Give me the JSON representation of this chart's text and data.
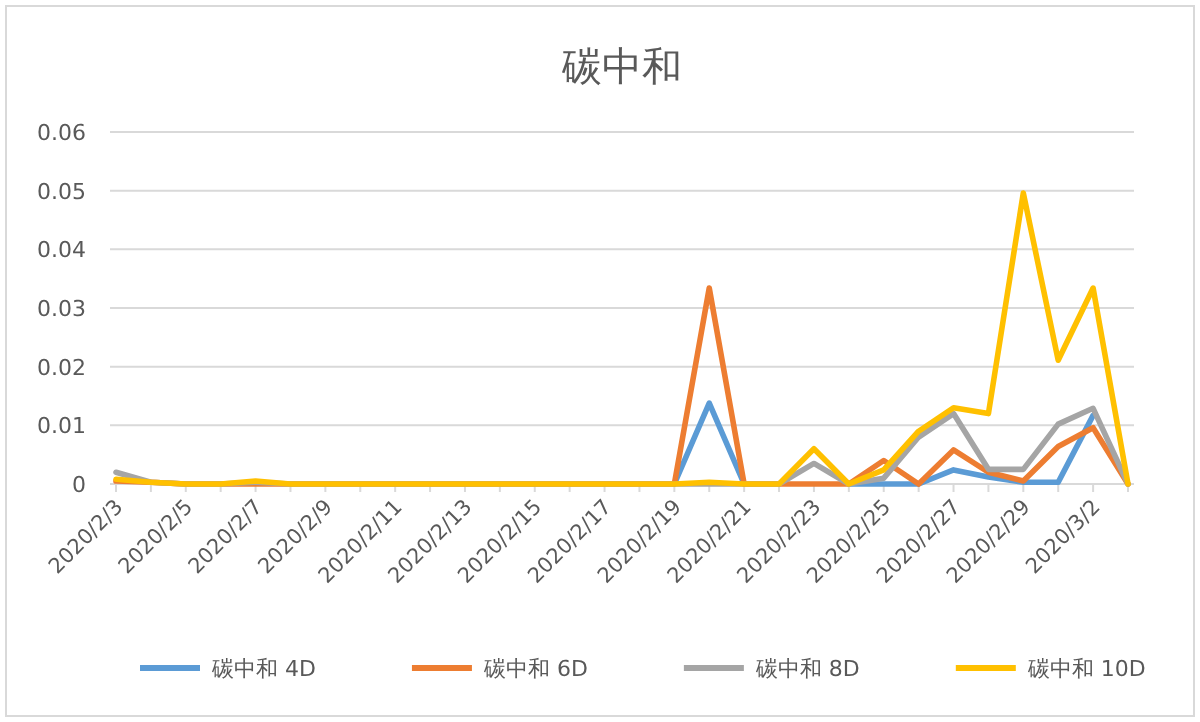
{
  "chart_data": {
    "type": "line",
    "title": "碳中和",
    "categories": [
      "2020/2/3",
      null,
      "2020/2/5",
      null,
      "2020/2/7",
      null,
      "2020/2/9",
      null,
      "2020/2/11",
      null,
      "2020/2/13",
      null,
      "2020/2/15",
      null,
      "2020/2/17",
      null,
      "2020/2/19",
      null,
      "2020/2/21",
      null,
      "2020/2/23",
      null,
      "2020/2/25",
      null,
      "2020/2/27",
      null,
      "2020/2/29",
      null,
      "2020/3/2",
      null
    ],
    "series": [
      {
        "name": "碳中和 4D",
        "color": "#5b9bd5",
        "values": [
          null,
          null,
          null,
          null,
          null,
          null,
          null,
          null,
          null,
          null,
          null,
          null,
          null,
          null,
          null,
          null,
          0,
          0.0138,
          0,
          null,
          null,
          0,
          0,
          0,
          0.0024,
          0.0012,
          0.0003,
          0.0003,
          0.0117,
          null
        ]
      },
      {
        "name": "碳中和 6D",
        "color": "#ed7d31",
        "values": [
          0.0005,
          0.0003,
          0,
          0,
          0,
          0,
          0,
          0,
          0,
          0,
          0,
          0,
          0,
          0,
          0,
          0,
          0,
          0.0334,
          0,
          0,
          0,
          0,
          0.004,
          0,
          0.0058,
          0.002,
          0.0005,
          0.0064,
          0.0096,
          0
        ]
      },
      {
        "name": "碳中和 8D",
        "color": "#a5a5a5",
        "values": [
          0.002,
          0.0003,
          0,
          0,
          0.0003,
          0,
          0,
          0,
          0,
          0,
          0,
          0,
          0,
          0,
          0,
          0,
          0,
          0,
          0,
          0,
          0.0035,
          0,
          0.001,
          0.008,
          0.012,
          0.0025,
          0.0025,
          0.0102,
          0.0129,
          0
        ]
      },
      {
        "name": "碳中和 10D",
        "color": "#ffc000",
        "values": [
          0.0008,
          0.0003,
          0,
          0,
          0.0005,
          0,
          0,
          0,
          0,
          0,
          0,
          0,
          0,
          0,
          0,
          0,
          0,
          0.0003,
          0,
          0,
          0.006,
          0,
          0.0024,
          0.009,
          0.013,
          0.012,
          0.0496,
          0.0211,
          0.0334,
          0
        ]
      }
    ],
    "ylim": [
      0,
      0.06
    ],
    "yticks": [
      0,
      0.01,
      0.02,
      0.03,
      0.04,
      0.05,
      0.06
    ],
    "grid": "y",
    "legend": "bottom"
  }
}
